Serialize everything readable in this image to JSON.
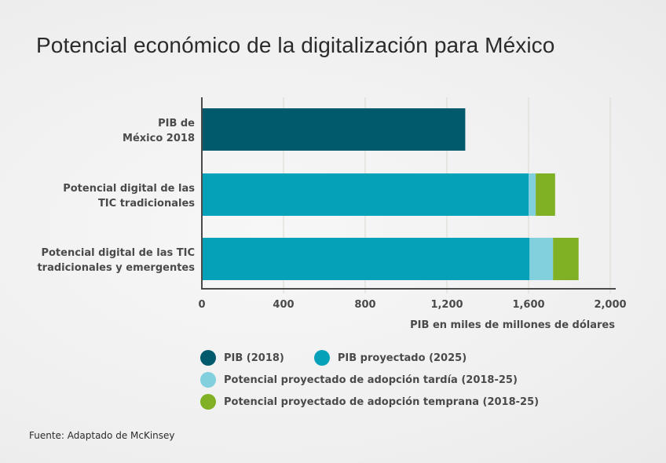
{
  "chart_data": {
    "type": "bar",
    "orientation": "horizontal",
    "stacked": true,
    "title": "Potencial económico de la digitalización para México",
    "xlabel": "PIB en miles de millones de dólares",
    "ylabel": "",
    "xlim": [
      0,
      2000
    ],
    "xticks": [
      0,
      400,
      800,
      1200,
      1600,
      2000
    ],
    "xtick_labels": [
      "0",
      "400",
      "800",
      "1,200",
      "1,600",
      "2,000"
    ],
    "grid": "vertical",
    "categories": [
      [
        "PIB de",
        "México 2018"
      ],
      [
        "Potencial digital de las",
        "TIC tradicionales"
      ],
      [
        "Potencial digital de las TIC",
        "tradicionales y emergentes"
      ]
    ],
    "series": [
      {
        "name": "PIB (2018)",
        "color": "#005a6b",
        "values": [
          1290,
          0,
          0
        ]
      },
      {
        "name": "PIB proyectado (2025)",
        "color": "#05a1b9",
        "values": [
          0,
          1600,
          1605
        ]
      },
      {
        "name": "Potencial proyectado de adopción tardía (2018-25)",
        "color": "#82cfdd",
        "values": [
          0,
          35,
          115
        ]
      },
      {
        "name": "Potencial proyectado de adopción temprana (2018-25)",
        "color": "#80b024",
        "values": [
          0,
          95,
          125
        ]
      }
    ],
    "legend_position": "bottom"
  },
  "legend_rows": [
    [
      0,
      1
    ],
    [
      2
    ],
    [
      3
    ]
  ],
  "source": "Fuente: Adaptado de McKinsey"
}
